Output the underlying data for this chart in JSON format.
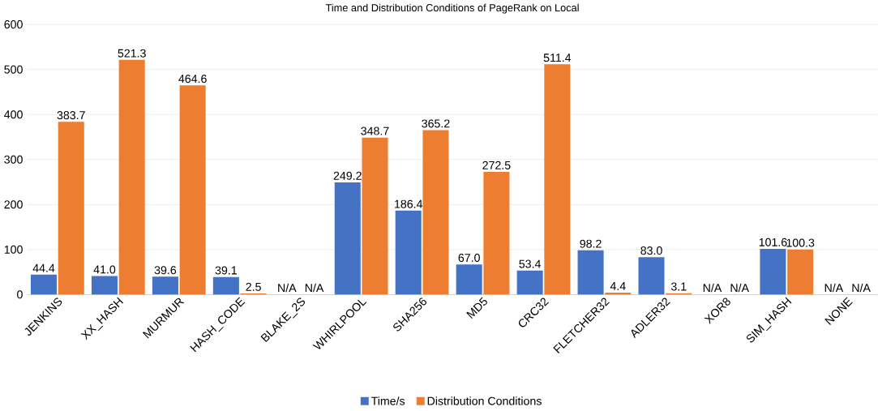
{
  "chart_data": {
    "type": "bar",
    "title": "Time and Distribution Conditions of PageRank on Local",
    "categories": [
      "JENKINS",
      "XX_HASH",
      "MURMUR",
      "HASH_CODE",
      "BLAKE_2S",
      "WHIRLPOOL",
      "SHA256",
      "MD5",
      "CRC32",
      "FLETCHER32",
      "ADLER32",
      "XOR8",
      "SIM_HASH",
      "NONE"
    ],
    "series": [
      {
        "name": "Time/s",
        "color": "#4472c4",
        "values": [
          44.4,
          41.0,
          39.6,
          39.1,
          null,
          249.2,
          186.4,
          67.0,
          53.4,
          98.2,
          83.0,
          null,
          101.6,
          null
        ],
        "value_labels": [
          "44.4",
          "41.0",
          "39.6",
          "39.1",
          "N/A",
          "249.2",
          "186.4",
          "67.0",
          "53.4",
          "98.2",
          "83.0",
          "N/A",
          "101.6",
          "N/A"
        ]
      },
      {
        "name": "Distribution Conditions",
        "color": "#ed7d31",
        "values": [
          383.7,
          521.3,
          464.6,
          2.5,
          null,
          348.7,
          365.2,
          272.5,
          511.4,
          4.4,
          3.1,
          null,
          100.3,
          null
        ],
        "value_labels": [
          "383.7",
          "521.3",
          "464.6",
          "2.5",
          "N/A",
          "348.7",
          "365.2",
          "272.5",
          "511.4",
          "4.4",
          "3.1",
          "N/A",
          "100.3",
          "N/A"
        ]
      }
    ],
    "ylim": [
      0,
      600
    ],
    "yticks": [
      0,
      100,
      200,
      300,
      400,
      500,
      600
    ],
    "grid": "y",
    "legend": "bottom"
  }
}
